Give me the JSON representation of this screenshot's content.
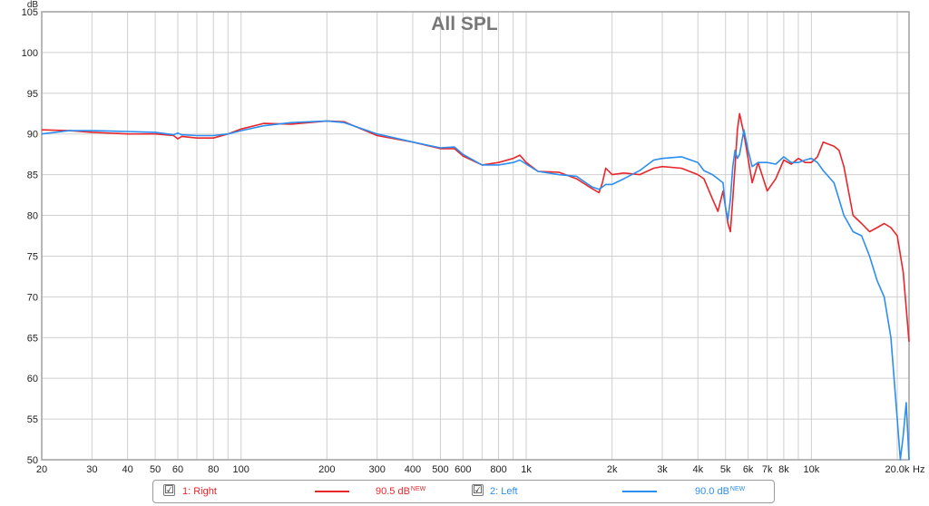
{
  "chart_data": {
    "type": "line",
    "title": "All SPL",
    "ylabel": "dB",
    "xunit": "Hz",
    "xscale": "log",
    "xlim": [
      20,
      22000
    ],
    "ylim": [
      50,
      105
    ],
    "grid": true,
    "x_tick_labels": [
      {
        "value": 20,
        "label": "20"
      },
      {
        "value": 30,
        "label": "30"
      },
      {
        "value": 40,
        "label": "40"
      },
      {
        "value": 50,
        "label": "50"
      },
      {
        "value": 60,
        "label": "60"
      },
      {
        "value": 80,
        "label": "80"
      },
      {
        "value": 100,
        "label": "100"
      },
      {
        "value": 200,
        "label": "200"
      },
      {
        "value": 300,
        "label": "300"
      },
      {
        "value": 400,
        "label": "400"
      },
      {
        "value": 500,
        "label": "500"
      },
      {
        "value": 600,
        "label": "600"
      },
      {
        "value": 800,
        "label": "800"
      },
      {
        "value": 1000,
        "label": "1k"
      },
      {
        "value": 2000,
        "label": "2k"
      },
      {
        "value": 3000,
        "label": "3k"
      },
      {
        "value": 4000,
        "label": "4k"
      },
      {
        "value": 5000,
        "label": "5k"
      },
      {
        "value": 6000,
        "label": "6k"
      },
      {
        "value": 7000,
        "label": "7k"
      },
      {
        "value": 8000,
        "label": "8k"
      },
      {
        "value": 10000,
        "label": "10k"
      },
      {
        "value": 20000,
        "label": "20.0k"
      }
    ],
    "y_ticks": [
      50,
      55,
      60,
      65,
      70,
      75,
      80,
      85,
      90,
      95,
      100,
      105
    ],
    "series": [
      {
        "name": "1: Right",
        "color": "#e8262b",
        "level": "90.5 dB",
        "x": [
          20,
          25,
          30,
          40,
          50,
          58,
          60,
          62,
          70,
          80,
          90,
          100,
          120,
          150,
          200,
          230,
          300,
          400,
          500,
          560,
          600,
          700,
          800,
          900,
          950,
          1000,
          1100,
          1300,
          1500,
          1700,
          1800,
          1850,
          1900,
          2000,
          2200,
          2500,
          2800,
          3000,
          3500,
          4000,
          4200,
          4500,
          4700,
          4900,
          5000,
          5100,
          5200,
          5300,
          5400,
          5500,
          5600,
          5800,
          6000,
          6200,
          6500,
          7000,
          7500,
          8000,
          8500,
          9000,
          9500,
          10000,
          10500,
          11000,
          12000,
          12500,
          13000,
          14000,
          15000,
          16000,
          17000,
          18000,
          19000,
          20000,
          21000,
          22000
        ],
        "y": [
          90.5,
          90.4,
          90.2,
          90.0,
          90.0,
          89.8,
          89.4,
          89.7,
          89.5,
          89.5,
          90.0,
          90.6,
          91.3,
          91.2,
          91.6,
          91.5,
          89.8,
          89.0,
          88.2,
          88.2,
          87.3,
          86.2,
          86.5,
          87.0,
          87.4,
          86.5,
          85.4,
          85.3,
          84.5,
          83.3,
          82.8,
          84.0,
          85.8,
          85.0,
          85.2,
          85.0,
          85.8,
          86.0,
          85.8,
          85.0,
          84.5,
          82.0,
          80.5,
          83.0,
          81.0,
          79.0,
          78.0,
          82.0,
          86.0,
          90.5,
          92.5,
          90.0,
          87.0,
          84.0,
          86.5,
          83.0,
          84.5,
          86.8,
          86.3,
          87.0,
          86.5,
          86.5,
          87.2,
          89.0,
          88.5,
          88.0,
          86.0,
          80.0,
          79.0,
          78.0,
          78.5,
          79.0,
          78.5,
          77.5,
          73.0,
          64.5
        ]
      },
      {
        "name": "2: Left",
        "color": "#2b8ef0",
        "level": "90.0 dB",
        "x": [
          20,
          25,
          30,
          40,
          50,
          58,
          60,
          62,
          70,
          80,
          90,
          100,
          120,
          150,
          200,
          230,
          300,
          400,
          500,
          560,
          600,
          700,
          800,
          900,
          950,
          1000,
          1100,
          1300,
          1500,
          1700,
          1800,
          1850,
          1900,
          2000,
          2200,
          2500,
          2800,
          3000,
          3500,
          4000,
          4200,
          4500,
          4700,
          4900,
          5000,
          5100,
          5200,
          5300,
          5400,
          5500,
          5600,
          5800,
          6000,
          6200,
          6500,
          7000,
          7500,
          8000,
          8500,
          9000,
          9500,
          10000,
          10500,
          11000,
          12000,
          12500,
          13000,
          14000,
          15000,
          16000,
          17000,
          18000,
          19000,
          20000,
          20500,
          21000,
          21500,
          22000
        ],
        "y": [
          90.0,
          90.4,
          90.4,
          90.3,
          90.2,
          89.9,
          90.1,
          89.9,
          89.8,
          89.8,
          90.0,
          90.4,
          91.0,
          91.4,
          91.6,
          91.4,
          90.0,
          89.0,
          88.3,
          88.4,
          87.5,
          86.2,
          86.2,
          86.5,
          86.8,
          86.3,
          85.4,
          85.0,
          84.8,
          83.5,
          83.2,
          83.5,
          83.8,
          83.8,
          84.5,
          85.5,
          86.8,
          87.0,
          87.2,
          86.5,
          85.5,
          85.0,
          84.5,
          84.0,
          81.0,
          79.5,
          82.0,
          86.0,
          88.0,
          87.0,
          87.5,
          90.5,
          88.0,
          86.0,
          86.5,
          86.5,
          86.3,
          87.2,
          86.5,
          86.5,
          86.8,
          87.0,
          86.5,
          85.5,
          84.0,
          82.0,
          80.0,
          78.0,
          77.5,
          75.0,
          72.0,
          70.0,
          65.0,
          55.0,
          50.0,
          53.0,
          57.0,
          50.0
        ]
      }
    ]
  },
  "legend": [
    {
      "checkbox": "☑",
      "name": "1: Right",
      "level": "90.5 dB",
      "badge": "NEW",
      "color": "#e8262b"
    },
    {
      "checkbox": "☑",
      "name": "2: Left",
      "level": "90.0 dB",
      "badge": "NEW",
      "color": "#2b8ef0"
    }
  ]
}
